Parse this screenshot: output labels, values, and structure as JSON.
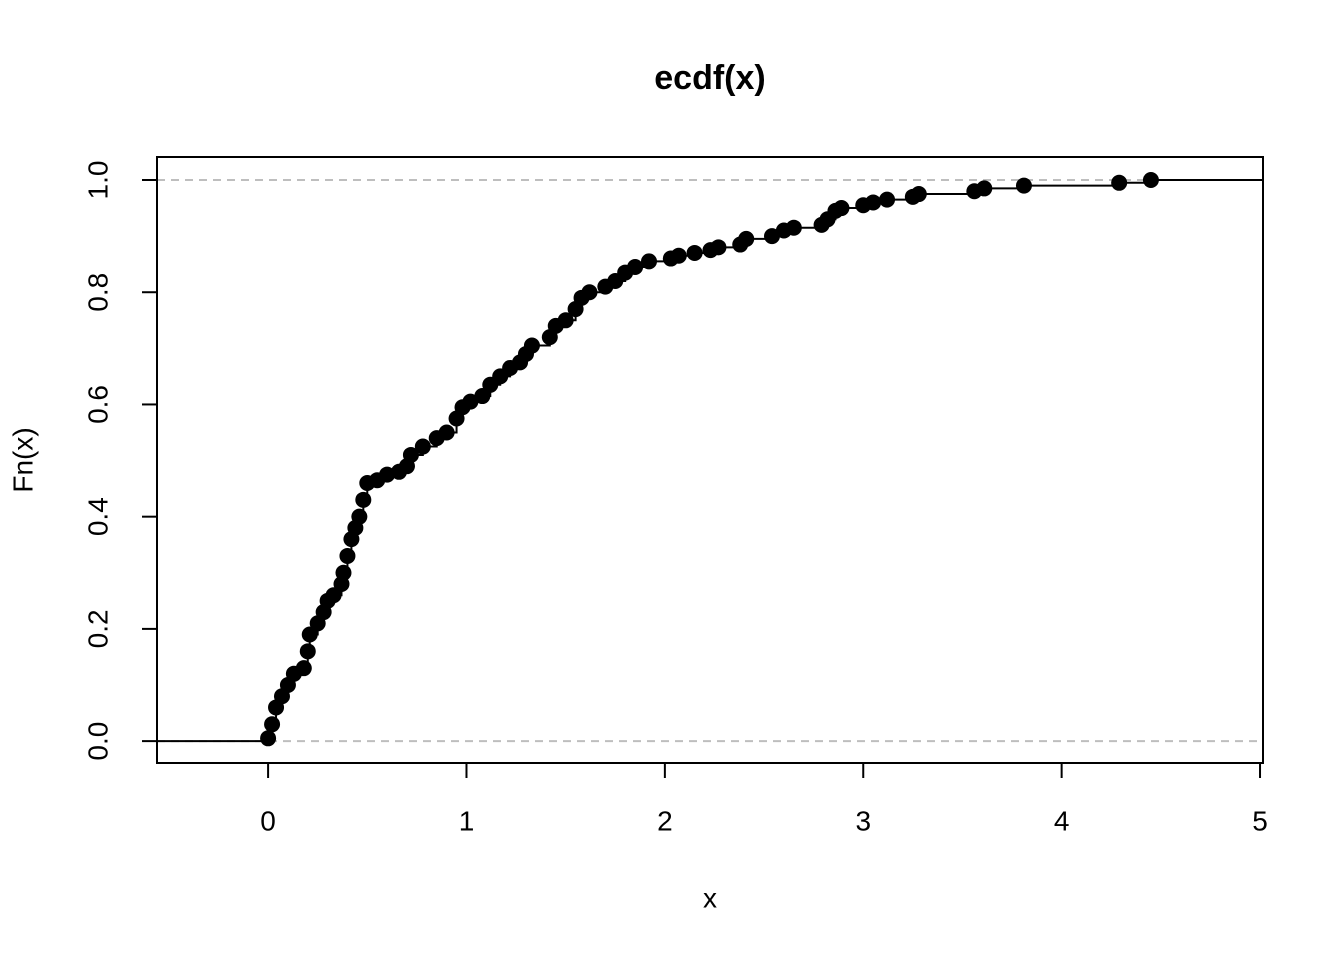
{
  "chart_data": {
    "type": "ecdf",
    "title": "ecdf(x)",
    "x_label": "x",
    "y_label": "Fn(x)",
    "x": [
      0.0,
      0.02,
      0.04,
      0.07,
      0.1,
      0.13,
      0.18,
      0.2,
      0.21,
      0.25,
      0.28,
      0.3,
      0.33,
      0.37,
      0.38,
      0.4,
      0.42,
      0.44,
      0.46,
      0.48,
      0.5,
      0.55,
      0.6,
      0.66,
      0.7,
      0.72,
      0.78,
      0.85,
      0.9,
      0.95,
      0.98,
      1.02,
      1.08,
      1.12,
      1.17,
      1.22,
      1.27,
      1.3,
      1.33,
      1.42,
      1.45,
      1.5,
      1.55,
      1.58,
      1.62,
      1.7,
      1.75,
      1.8,
      1.85,
      1.92,
      2.03,
      2.07,
      2.15,
      2.23,
      2.27,
      2.38,
      2.41,
      2.54,
      2.6,
      2.65,
      2.79,
      2.82,
      2.86,
      2.89,
      3.0,
      3.05,
      3.12,
      3.25,
      3.28,
      3.56,
      3.61,
      3.81,
      4.29,
      4.45
    ],
    "values": [
      0.005,
      0.03,
      0.06,
      0.08,
      0.1,
      0.12,
      0.13,
      0.16,
      0.19,
      0.21,
      0.23,
      0.25,
      0.26,
      0.28,
      0.3,
      0.33,
      0.36,
      0.38,
      0.4,
      0.43,
      0.46,
      0.465,
      0.475,
      0.48,
      0.49,
      0.51,
      0.525,
      0.54,
      0.55,
      0.575,
      0.595,
      0.605,
      0.615,
      0.635,
      0.65,
      0.665,
      0.675,
      0.69,
      0.705,
      0.72,
      0.74,
      0.75,
      0.77,
      0.79,
      0.8,
      0.81,
      0.82,
      0.835,
      0.845,
      0.855,
      0.86,
      0.865,
      0.87,
      0.875,
      0.88,
      0.885,
      0.895,
      0.9,
      0.91,
      0.915,
      0.92,
      0.93,
      0.945,
      0.95,
      0.955,
      0.96,
      0.965,
      0.97,
      0.975,
      0.98,
      0.985,
      0.99,
      0.995,
      1.0
    ],
    "color": "#000000",
    "reference_color": "#bebebe",
    "reference_lines": [
      0,
      1
    ],
    "xlim": [
      -0.56,
      5.015
    ],
    "ylim": [
      -0.039,
      1.041
    ],
    "xticks": [
      0,
      1,
      2,
      3,
      4,
      5
    ],
    "yticks": [
      {
        "value": 0,
        "label": "0.0"
      },
      {
        "value": 0.2,
        "label": "0.2"
      },
      {
        "value": 0.4,
        "label": "0.4"
      },
      {
        "value": 0.6,
        "label": "0.6"
      },
      {
        "value": 0.8,
        "label": "0.8"
      },
      {
        "value": 1,
        "label": "1.0"
      }
    ]
  }
}
